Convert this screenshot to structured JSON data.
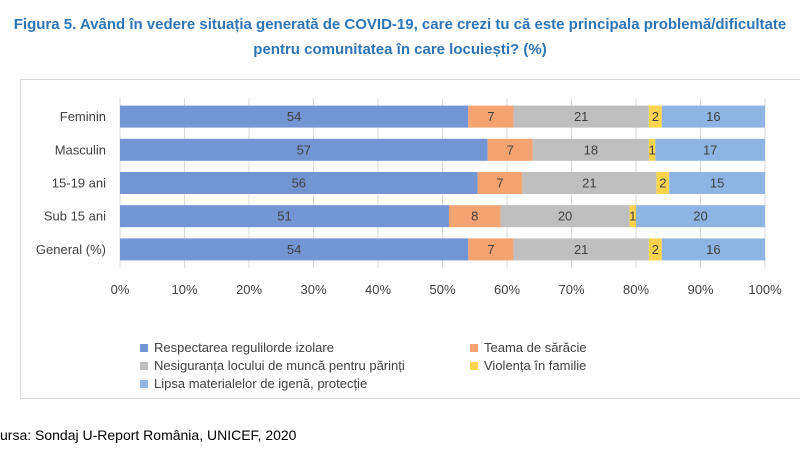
{
  "title_line1": "Figura 5. Având în vedere situația generată de COVID-19, care crezi tu că este principala problemă/dificultate",
  "title_line2": "pentru comunitatea în care locuiești? (%)",
  "source": "ursa: Sondaj U-Report România, UNICEF, 2020",
  "chart_data": {
    "type": "bar",
    "orientation": "horizontal",
    "stacked": "percent",
    "categories": [
      "Feminin",
      "Masculin",
      "15-19 ani",
      "Sub 15 ani",
      "General (%)"
    ],
    "series": [
      {
        "name": "Respectarea regulilorde izolare",
        "color": "#7495D4",
        "values": [
          54,
          57,
          56,
          51,
          54
        ]
      },
      {
        "name": "Teama de sărăcie",
        "color": "#F4A371",
        "values": [
          7,
          7,
          7,
          8,
          7
        ]
      },
      {
        "name": "Nesiguranța locului de muncă pentru părinți",
        "color": "#BFBFBF",
        "values": [
          21,
          18,
          21,
          20,
          21
        ]
      },
      {
        "name": "Violența în familie",
        "color": "#FFD34E",
        "values": [
          2,
          1,
          2,
          1,
          2
        ]
      },
      {
        "name": "Lipsa materialelor de igenă, protecție",
        "color": "#8DB4E2",
        "values": [
          16,
          17,
          15,
          20,
          16
        ]
      }
    ],
    "x_ticks": [
      "0%",
      "10%",
      "20%",
      "30%",
      "40%",
      "50%",
      "60%",
      "70%",
      "80%",
      "90%",
      "100%"
    ],
    "xlim": [
      0,
      100
    ],
    "grid": true,
    "legend_position": "bottom"
  }
}
